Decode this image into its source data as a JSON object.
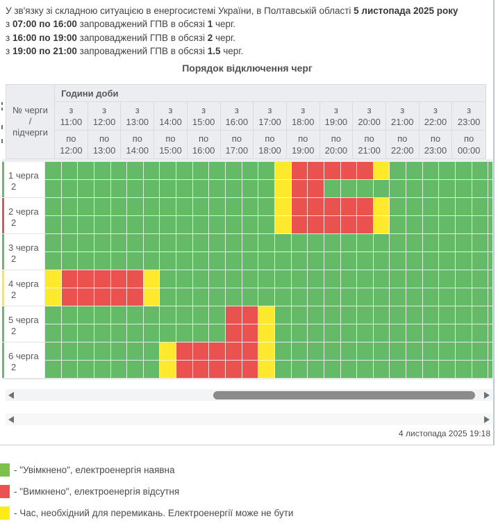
{
  "intro": {
    "line1": {
      "text": "У зв'язку зі складною ситуацією в енергосистемі України, в Полтавській області ",
      "bold": "5 листопада 2025 року"
    },
    "schedule_lines": [
      {
        "pre": "з ",
        "time": "07:00 по 16:00",
        "mid": " запроваджений ГПВ в обсязі ",
        "qty": "1",
        "post": " черг."
      },
      {
        "pre": "з ",
        "time": "16:00 по 19:00",
        "mid": " запроваджений ГПВ в обсязі ",
        "qty": "2",
        "post": " черг."
      },
      {
        "pre": "з ",
        "time": "19:00 по 21:00",
        "mid": " запроваджений ГПВ в обсязі ",
        "qty": "1.5",
        "post": " черг."
      }
    ]
  },
  "table": {
    "title": "Порядок відключення черг",
    "hours_group_label": "Години доби",
    "corner": [
      "№ черги",
      "/",
      "підчерги"
    ],
    "columns": [
      {
        "from": "з",
        "from_time": "11:00",
        "to": "по",
        "to_time": "12:00"
      },
      {
        "from": "з",
        "from_time": "12:00",
        "to": "по",
        "to_time": "13:00"
      },
      {
        "from": "з",
        "from_time": "13:00",
        "to": "по",
        "to_time": "14:00"
      },
      {
        "from": "з",
        "from_time": "14:00",
        "to": "по",
        "to_time": "15:00"
      },
      {
        "from": "з",
        "from_time": "15:00",
        "to": "по",
        "to_time": "16:00"
      },
      {
        "from": "з",
        "from_time": "16:00",
        "to": "по",
        "to_time": "17:00"
      },
      {
        "from": "з",
        "from_time": "17:00",
        "to": "по",
        "to_time": "18:00"
      },
      {
        "from": "з",
        "from_time": "18:00",
        "to": "по",
        "to_time": "19:00"
      },
      {
        "from": "з",
        "from_time": "19:00",
        "to": "по",
        "to_time": "20:00"
      },
      {
        "from": "з",
        "from_time": "20:00",
        "to": "по",
        "to_time": "21:00"
      },
      {
        "from": "з",
        "from_time": "21:00",
        "to": "по",
        "to_time": "22:00"
      },
      {
        "from": "з",
        "from_time": "22:00",
        "to": "по",
        "to_time": "23:00"
      },
      {
        "from": "з",
        "from_time": "23:00",
        "to": "по",
        "to_time": "00:00"
      }
    ],
    "cell_colors": {
      "G": "#65ba68",
      "R": "#ea5250",
      "Y": "#ffe92d"
    },
    "rows": [
      {
        "label": "1 черга",
        "label2": "2",
        "sliver": "G",
        "sub1": "GGGGGGGGGGGGGGYRRRRRYGGGGGGG",
        "sub2": "GGGGGGGGGGGGGGYRRGGGGGGGGGGG"
      },
      {
        "label": "2 черга",
        "label2": "2",
        "sliver": "R",
        "sub1": "GGGGGGGGGGGGGGYRRRRRYGGGGGGG",
        "sub2": "GGGGGGGGGGGGGGYRRRRRYGGGGGGG"
      },
      {
        "label": "3 черга",
        "label2": "2",
        "sliver": "G",
        "sub1": "GGGGGGGGGGGGGGGGGGGGGGGGGGGG",
        "sub2": "GGGGGGGGGGGGGGGGGGGGGGGGGGGG"
      },
      {
        "label": "4 черга",
        "label2": "2",
        "sliver": "Y",
        "sub1": "YRRRRRYGGGGGGGGGGGGGGGGGGGGG",
        "sub2": "YRRRRRYGGGGGGGGGGGGGGGGGGGGG"
      },
      {
        "label": "5 черга",
        "label2": "2",
        "sliver": "G",
        "sub1": "GGGGGGGGGGGRRYGGGGGGGGGGGGGG",
        "sub2": "GGGGGGGGGGGRRYGGGGGGGGGGGGGG"
      },
      {
        "label": "6 черга",
        "label2": "2",
        "sliver": "G",
        "sub1": "GGGGGGGYRRRRRYGGGGGGGGGGGGGG",
        "sub2": "GGGGGGGYRRRRRYGGGGGGGGGGGGGG"
      }
    ]
  },
  "footer": {
    "timestamp": "4 листопада 2025 19:18"
  },
  "legend": [
    {
      "color": "#7cc24a",
      "label": "- \"Увімкнено\", електроенергія наявна"
    },
    {
      "color": "#ea5350",
      "label": "- \"Вимкнено\", електроенергія відсутня"
    },
    {
      "color": "#ffeb19",
      "label": "- Час, необхідний для перемикань. Електроенергії може не бути"
    }
  ]
}
